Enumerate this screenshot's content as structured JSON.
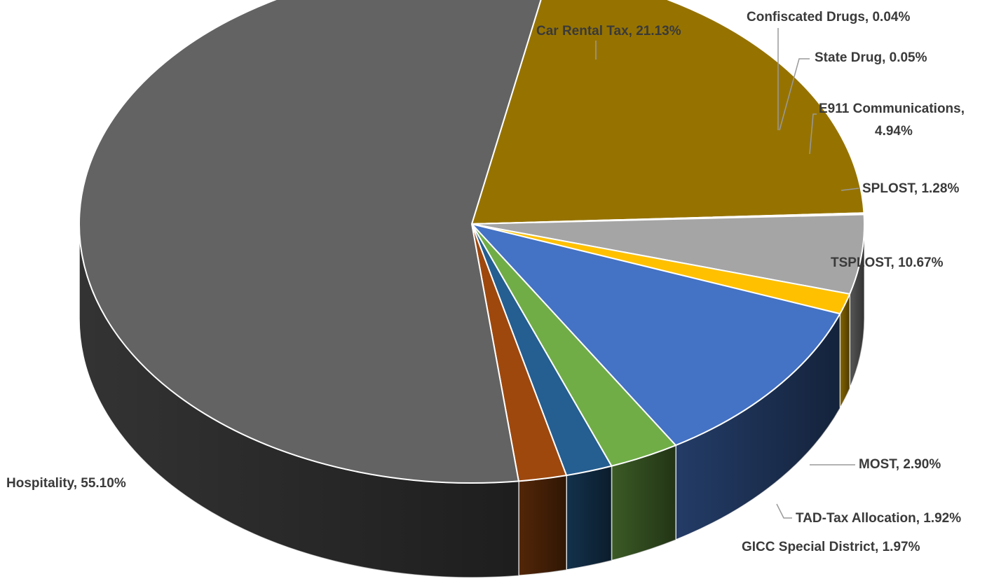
{
  "chart_data": {
    "type": "pie",
    "title": "",
    "slices": [
      {
        "label": "Car Rental Tax",
        "value": 21.13,
        "display": "Car Rental Tax, 21.13%",
        "color": "#967300"
      },
      {
        "label": "Confiscated Drugs",
        "value": 0.04,
        "display": "Confiscated Drugs, 0.04%",
        "color": "#7f7f7f"
      },
      {
        "label": "State Drug",
        "value": 0.05,
        "display": "State Drug, 0.05%",
        "color": "#8a8a8a"
      },
      {
        "label": "E911 Communications",
        "value": 4.94,
        "display": [
          "E911 Communications,",
          "4.94%"
        ],
        "color": "#a5a5a5"
      },
      {
        "label": "SPLOST",
        "value": 1.28,
        "display": "SPLOST, 1.28%",
        "color": "#ffc000"
      },
      {
        "label": "TSPLOST",
        "value": 10.67,
        "display": "TSPLOST, 10.67%",
        "color": "#4472c4"
      },
      {
        "label": "MOST",
        "value": 2.9,
        "display": "MOST, 2.90%",
        "color": "#70ad47"
      },
      {
        "label": "TAD-Tax Allocation",
        "value": 1.92,
        "display": "TAD-Tax Allocation, 1.92%",
        "color": "#255e91"
      },
      {
        "label": "GICC Special District",
        "value": 1.97,
        "display": "GICC Special District, 1.97%",
        "color": "#9e480e"
      },
      {
        "label": "Hospitality",
        "value": 55.1,
        "display": "Hospitality, 55.10%",
        "color": "#636363"
      }
    ],
    "style": "3d-pie",
    "legend": "none",
    "data_labels": "outside with leader lines"
  }
}
